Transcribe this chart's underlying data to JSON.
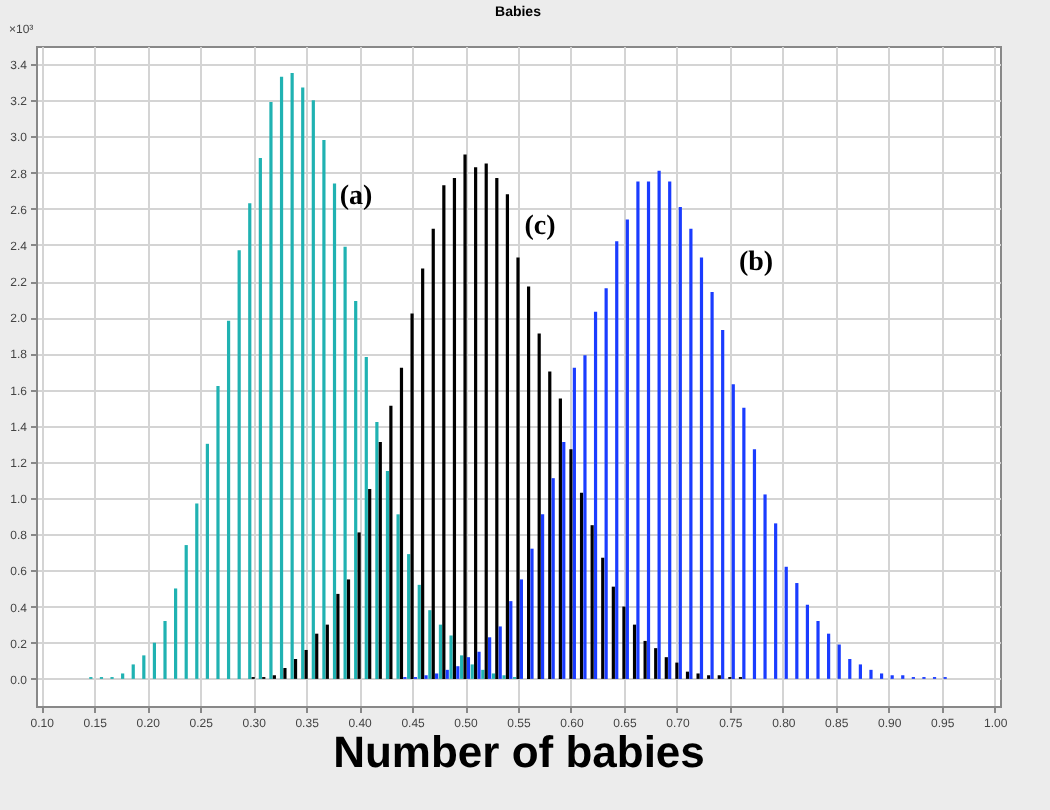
{
  "chart_data": {
    "type": "bar",
    "title": "Babies",
    "xlabel": "Number of babies",
    "ylabel": "×10³",
    "annotations": [
      "(a)",
      "(c)",
      "(b)"
    ],
    "xlim": [
      0.095,
      1.005
    ],
    "ylim": [
      -0.15,
      3.5
    ],
    "xticks": [
      {
        "value": 0.1,
        "label": "0.10"
      },
      {
        "value": 0.15,
        "label": "0.15"
      },
      {
        "value": 0.2,
        "label": "0.20"
      },
      {
        "value": 0.25,
        "label": "0.25"
      },
      {
        "value": 0.3,
        "label": "0.30"
      },
      {
        "value": 0.35,
        "label": "0.35"
      },
      {
        "value": 0.4,
        "label": "0.40"
      },
      {
        "value": 0.45,
        "label": "0.45"
      },
      {
        "value": 0.5,
        "label": "0.50"
      },
      {
        "value": 0.55,
        "label": "0.55"
      },
      {
        "value": 0.6,
        "label": "0.60"
      },
      {
        "value": 0.65,
        "label": "0.65"
      },
      {
        "value": 0.7,
        "label": "0.70"
      },
      {
        "value": 0.75,
        "label": "0.75"
      },
      {
        "value": 0.8,
        "label": "0.80"
      },
      {
        "value": 0.85,
        "label": "0.85"
      },
      {
        "value": 0.9,
        "label": "0.90"
      },
      {
        "value": 0.95,
        "label": "0.95"
      },
      {
        "value": 1,
        "label": "1.00"
      }
    ],
    "yticks": [
      {
        "value": 0,
        "label": "0.0"
      },
      {
        "value": 0.2,
        "label": "0.2"
      },
      {
        "value": 0.4,
        "label": "0.4"
      },
      {
        "value": 0.6,
        "label": "0.6"
      },
      {
        "value": 0.8,
        "label": "0.8"
      },
      {
        "value": 1,
        "label": "1.0"
      },
      {
        "value": 1.2,
        "label": "1.2"
      },
      {
        "value": 1.4,
        "label": "1.4"
      },
      {
        "value": 1.6,
        "label": "1.6"
      },
      {
        "value": 1.8,
        "label": "1.8"
      },
      {
        "value": 2,
        "label": "2.0"
      },
      {
        "value": 2.2,
        "label": "2.2"
      },
      {
        "value": 2.4,
        "label": "2.4"
      },
      {
        "value": 2.6,
        "label": "2.6"
      },
      {
        "value": 2.8,
        "label": "2.8"
      },
      {
        "value": 3,
        "label": "3.0"
      },
      {
        "value": 3.2,
        "label": "3.2"
      },
      {
        "value": 3.4,
        "label": "3.4"
      }
    ],
    "grid": true,
    "series": [
      {
        "color": "#20b2b2",
        "x": [
          0.15,
          0.16,
          0.17,
          0.18,
          0.19,
          0.2,
          0.21,
          0.22,
          0.23,
          0.24,
          0.25,
          0.26,
          0.27,
          0.28,
          0.29,
          0.3,
          0.31,
          0.32,
          0.33,
          0.34,
          0.35,
          0.36,
          0.37,
          0.38,
          0.39,
          0.4,
          0.41,
          0.42,
          0.43,
          0.44,
          0.45,
          0.46,
          0.47,
          0.48,
          0.49,
          0.5,
          0.51,
          0.52,
          0.53,
          0.54,
          0.55
        ],
        "values": [
          0.01,
          0.01,
          0.01,
          0.03,
          0.08,
          0.13,
          0.2,
          0.32,
          0.5,
          0.74,
          0.97,
          1.3,
          1.62,
          1.98,
          2.37,
          2.63,
          2.88,
          3.19,
          3.33,
          3.35,
          3.27,
          3.2,
          2.98,
          2.74,
          2.39,
          2.09,
          1.78,
          1.42,
          1.15,
          0.91,
          0.69,
          0.52,
          0.38,
          0.3,
          0.24,
          0.13,
          0.08,
          0.05,
          0.03,
          0.02,
          0.01
        ]
      },
      {
        "color": "#000000",
        "x": [
          0.3,
          0.31,
          0.32,
          0.33,
          0.34,
          0.35,
          0.36,
          0.37,
          0.38,
          0.39,
          0.4,
          0.41,
          0.42,
          0.43,
          0.44,
          0.45,
          0.46,
          0.47,
          0.48,
          0.49,
          0.5,
          0.51,
          0.52,
          0.53,
          0.54,
          0.55,
          0.56,
          0.57,
          0.58,
          0.59,
          0.6,
          0.61,
          0.62,
          0.63,
          0.64,
          0.65,
          0.66,
          0.67,
          0.68,
          0.69,
          0.7,
          0.71,
          0.72,
          0.73,
          0.74,
          0.75,
          0.76
        ],
        "values": [
          0.01,
          0.01,
          0.02,
          0.06,
          0.11,
          0.16,
          0.25,
          0.3,
          0.47,
          0.55,
          0.81,
          1.05,
          1.31,
          1.51,
          1.72,
          2.02,
          2.27,
          2.49,
          2.73,
          2.77,
          2.9,
          2.83,
          2.85,
          2.77,
          2.68,
          2.33,
          2.17,
          1.91,
          1.7,
          1.55,
          1.27,
          1.03,
          0.85,
          0.67,
          0.51,
          0.4,
          0.3,
          0.21,
          0.17,
          0.12,
          0.09,
          0.04,
          0.03,
          0.02,
          0.02,
          0.01,
          0.01
        ]
      },
      {
        "color": "#1a3cff",
        "x": [
          0.44,
          0.45,
          0.46,
          0.47,
          0.48,
          0.49,
          0.5,
          0.51,
          0.52,
          0.53,
          0.54,
          0.55,
          0.56,
          0.57,
          0.58,
          0.59,
          0.6,
          0.61,
          0.62,
          0.63,
          0.64,
          0.65,
          0.66,
          0.67,
          0.68,
          0.69,
          0.7,
          0.71,
          0.72,
          0.73,
          0.74,
          0.75,
          0.76,
          0.77,
          0.78,
          0.79,
          0.8,
          0.81,
          0.82,
          0.83,
          0.84,
          0.85,
          0.86,
          0.87,
          0.88,
          0.89,
          0.9,
          0.91,
          0.92,
          0.93,
          0.94,
          0.95
        ],
        "values": [
          0.01,
          0.01,
          0.02,
          0.03,
          0.05,
          0.07,
          0.12,
          0.15,
          0.23,
          0.29,
          0.43,
          0.55,
          0.72,
          0.91,
          1.11,
          1.31,
          1.72,
          1.79,
          2.03,
          2.16,
          2.42,
          2.54,
          2.75,
          2.75,
          2.81,
          2.75,
          2.61,
          2.49,
          2.33,
          2.14,
          1.93,
          1.63,
          1.5,
          1.27,
          1.02,
          0.86,
          0.62,
          0.53,
          0.41,
          0.32,
          0.25,
          0.19,
          0.11,
          0.08,
          0.05,
          0.03,
          0.02,
          0.02,
          0.01,
          0.01,
          0.01,
          0.01
        ]
      }
    ]
  }
}
